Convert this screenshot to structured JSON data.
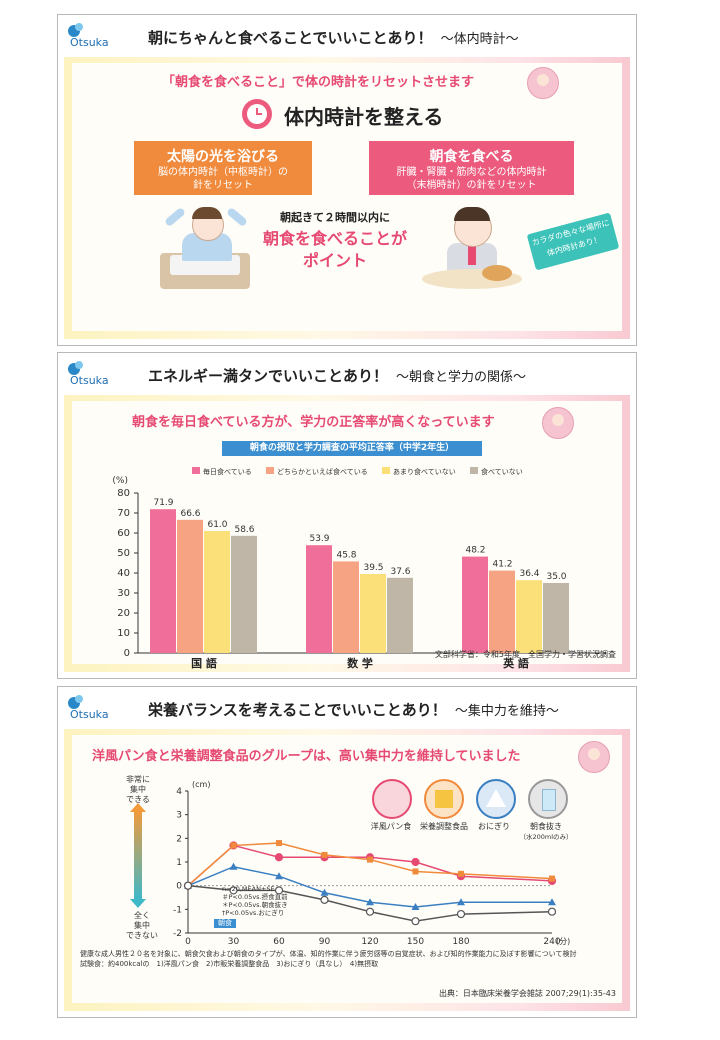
{
  "brand": {
    "logo_text": "Otsuka"
  },
  "slide1": {
    "title": "朝にちゃんと食べることでいいことあり！",
    "subtitle": "～体内時計～",
    "headline": "「朝食を食べること」で体の時計をリセットさせます",
    "main_heading": "体内時計を整える",
    "box_left": {
      "title": "太陽の光を浴びる",
      "line1": "脳の体内時計（中枢時計）の",
      "line2": "針をリセット"
    },
    "box_right": {
      "title": "朝食を食べる",
      "line1": "肝臓・腎臓・筋肉などの体内時計",
      "line2": "（末梢時計）の針をリセット"
    },
    "note_top": "朝起きて２時間以内に",
    "note_main1": "朝食を食べることが",
    "note_main2": "ポイント",
    "tag_line1": "カラダの色々な場所に",
    "tag_line2": "体内時計あり！"
  },
  "slide2": {
    "title": "エネルギー満タンでいいことあり！",
    "subtitle": "～朝食と学力の関係～",
    "headline": "朝食を毎日食べている方が、学力の正答率が高くなっています",
    "chart_title": "朝食の摂取と学力調査の平均正答率（中学2年生）",
    "source": "文部科学省：令和5年度　全国学力・学習状況調査"
  },
  "slide3": {
    "title": "栄養バランスを考えることでいいことあり！",
    "subtitle": "～集中力を維持～",
    "headline": "洋風パン食と栄養調整食品のグループは、高い集中力を維持していました",
    "y_top_label1": "非常に",
    "y_top_label2": "集中",
    "y_top_label3": "できる",
    "y_bot_label1": "全く",
    "y_bot_label2": "集中",
    "y_bot_label3": "できない",
    "stats1": "n=20,MEAN±SE",
    "stats2": "＃P<0.05vs.摂食直前",
    "stats3": "＊P<0.05vs.朝食抜き",
    "stats4": "†P<0.05vs.おにぎり",
    "meal_tag": "朝食",
    "foods": [
      {
        "label": "洋風パン食",
        "color": "#e64a72"
      },
      {
        "label": "栄養調整食品",
        "color": "#f08a3c"
      },
      {
        "label": "おにぎり",
        "color": "#3a7fc2"
      },
      {
        "label": "朝食抜き",
        "color": "#555555"
      }
    ],
    "food_note": "（水200mlのみ）",
    "body1": "健康な成人男性２０名を対象に、朝食欠食および朝食のタイプが、体温、知的作業に伴う疲労感等の自覚症状、および知的作業能力に及ぼす影響について検討",
    "body2": "試験食：約400kcalの　1)洋風パン食　2)市販栄養調整食品　3)おにぎり（具なし）　4)無摂取",
    "source": "出典：日本臨床栄養学会雑誌 2007;29(1):35-43"
  },
  "chart_data": [
    {
      "type": "bar",
      "title": "朝食の摂取と学力調査の平均正答率（中学2年生）",
      "ylabel": "(%)",
      "ylim": [
        0,
        80
      ],
      "yticks": [
        0,
        10,
        20,
        30,
        40,
        50,
        60,
        70,
        80
      ],
      "categories": [
        "国 語",
        "数 学",
        "英 語"
      ],
      "series": [
        {
          "name": "毎日食べている",
          "color": "#f06f9a",
          "values": [
            71.9,
            53.9,
            48.2
          ]
        },
        {
          "name": "どちらかといえば食べている",
          "color": "#f6a384",
          "values": [
            66.6,
            45.8,
            41.2
          ]
        },
        {
          "name": "あまり食べていない",
          "color": "#fbe07a",
          "values": [
            61.0,
            39.5,
            36.4
          ]
        },
        {
          "name": "食べていない",
          "color": "#bfb6a8",
          "values": [
            58.6,
            37.6,
            35.0
          ]
        }
      ],
      "labels": [
        [
          "71.9",
          "53.9",
          "48.2"
        ],
        [
          "66.6",
          "45.8",
          "41.2"
        ],
        [
          "61.0",
          "39.5",
          "36.4"
        ],
        [
          "58.6",
          "37.6",
          "35.0"
        ]
      ],
      "legend": "top"
    },
    {
      "type": "line",
      "ylabel": "(cm)",
      "ylim": [
        -2,
        4
      ],
      "yticks": [
        -2,
        -1,
        0,
        1,
        2,
        3,
        4
      ],
      "xlabel": "(分)",
      "x": [
        0,
        30,
        60,
        90,
        120,
        150,
        180,
        240
      ],
      "series": [
        {
          "name": "洋風パン食",
          "color": "#e64a72",
          "values": [
            0,
            1.7,
            1.2,
            1.2,
            1.2,
            1.0,
            0.4,
            0.2
          ]
        },
        {
          "name": "栄養調整食品",
          "color": "#f08a3c",
          "values": [
            0,
            1.7,
            1.8,
            1.3,
            1.1,
            0.6,
            0.5,
            0.3
          ]
        },
        {
          "name": "おにぎり",
          "color": "#3a7fc2",
          "values": [
            0,
            0.8,
            0.4,
            -0.3,
            -0.7,
            -0.9,
            -0.7,
            -0.7
          ]
        },
        {
          "name": "朝食抜き",
          "color": "#555555",
          "values": [
            0,
            -0.2,
            -0.2,
            -0.6,
            -1.1,
            -1.5,
            -1.2,
            -1.1
          ]
        }
      ],
      "grid": false
    }
  ]
}
